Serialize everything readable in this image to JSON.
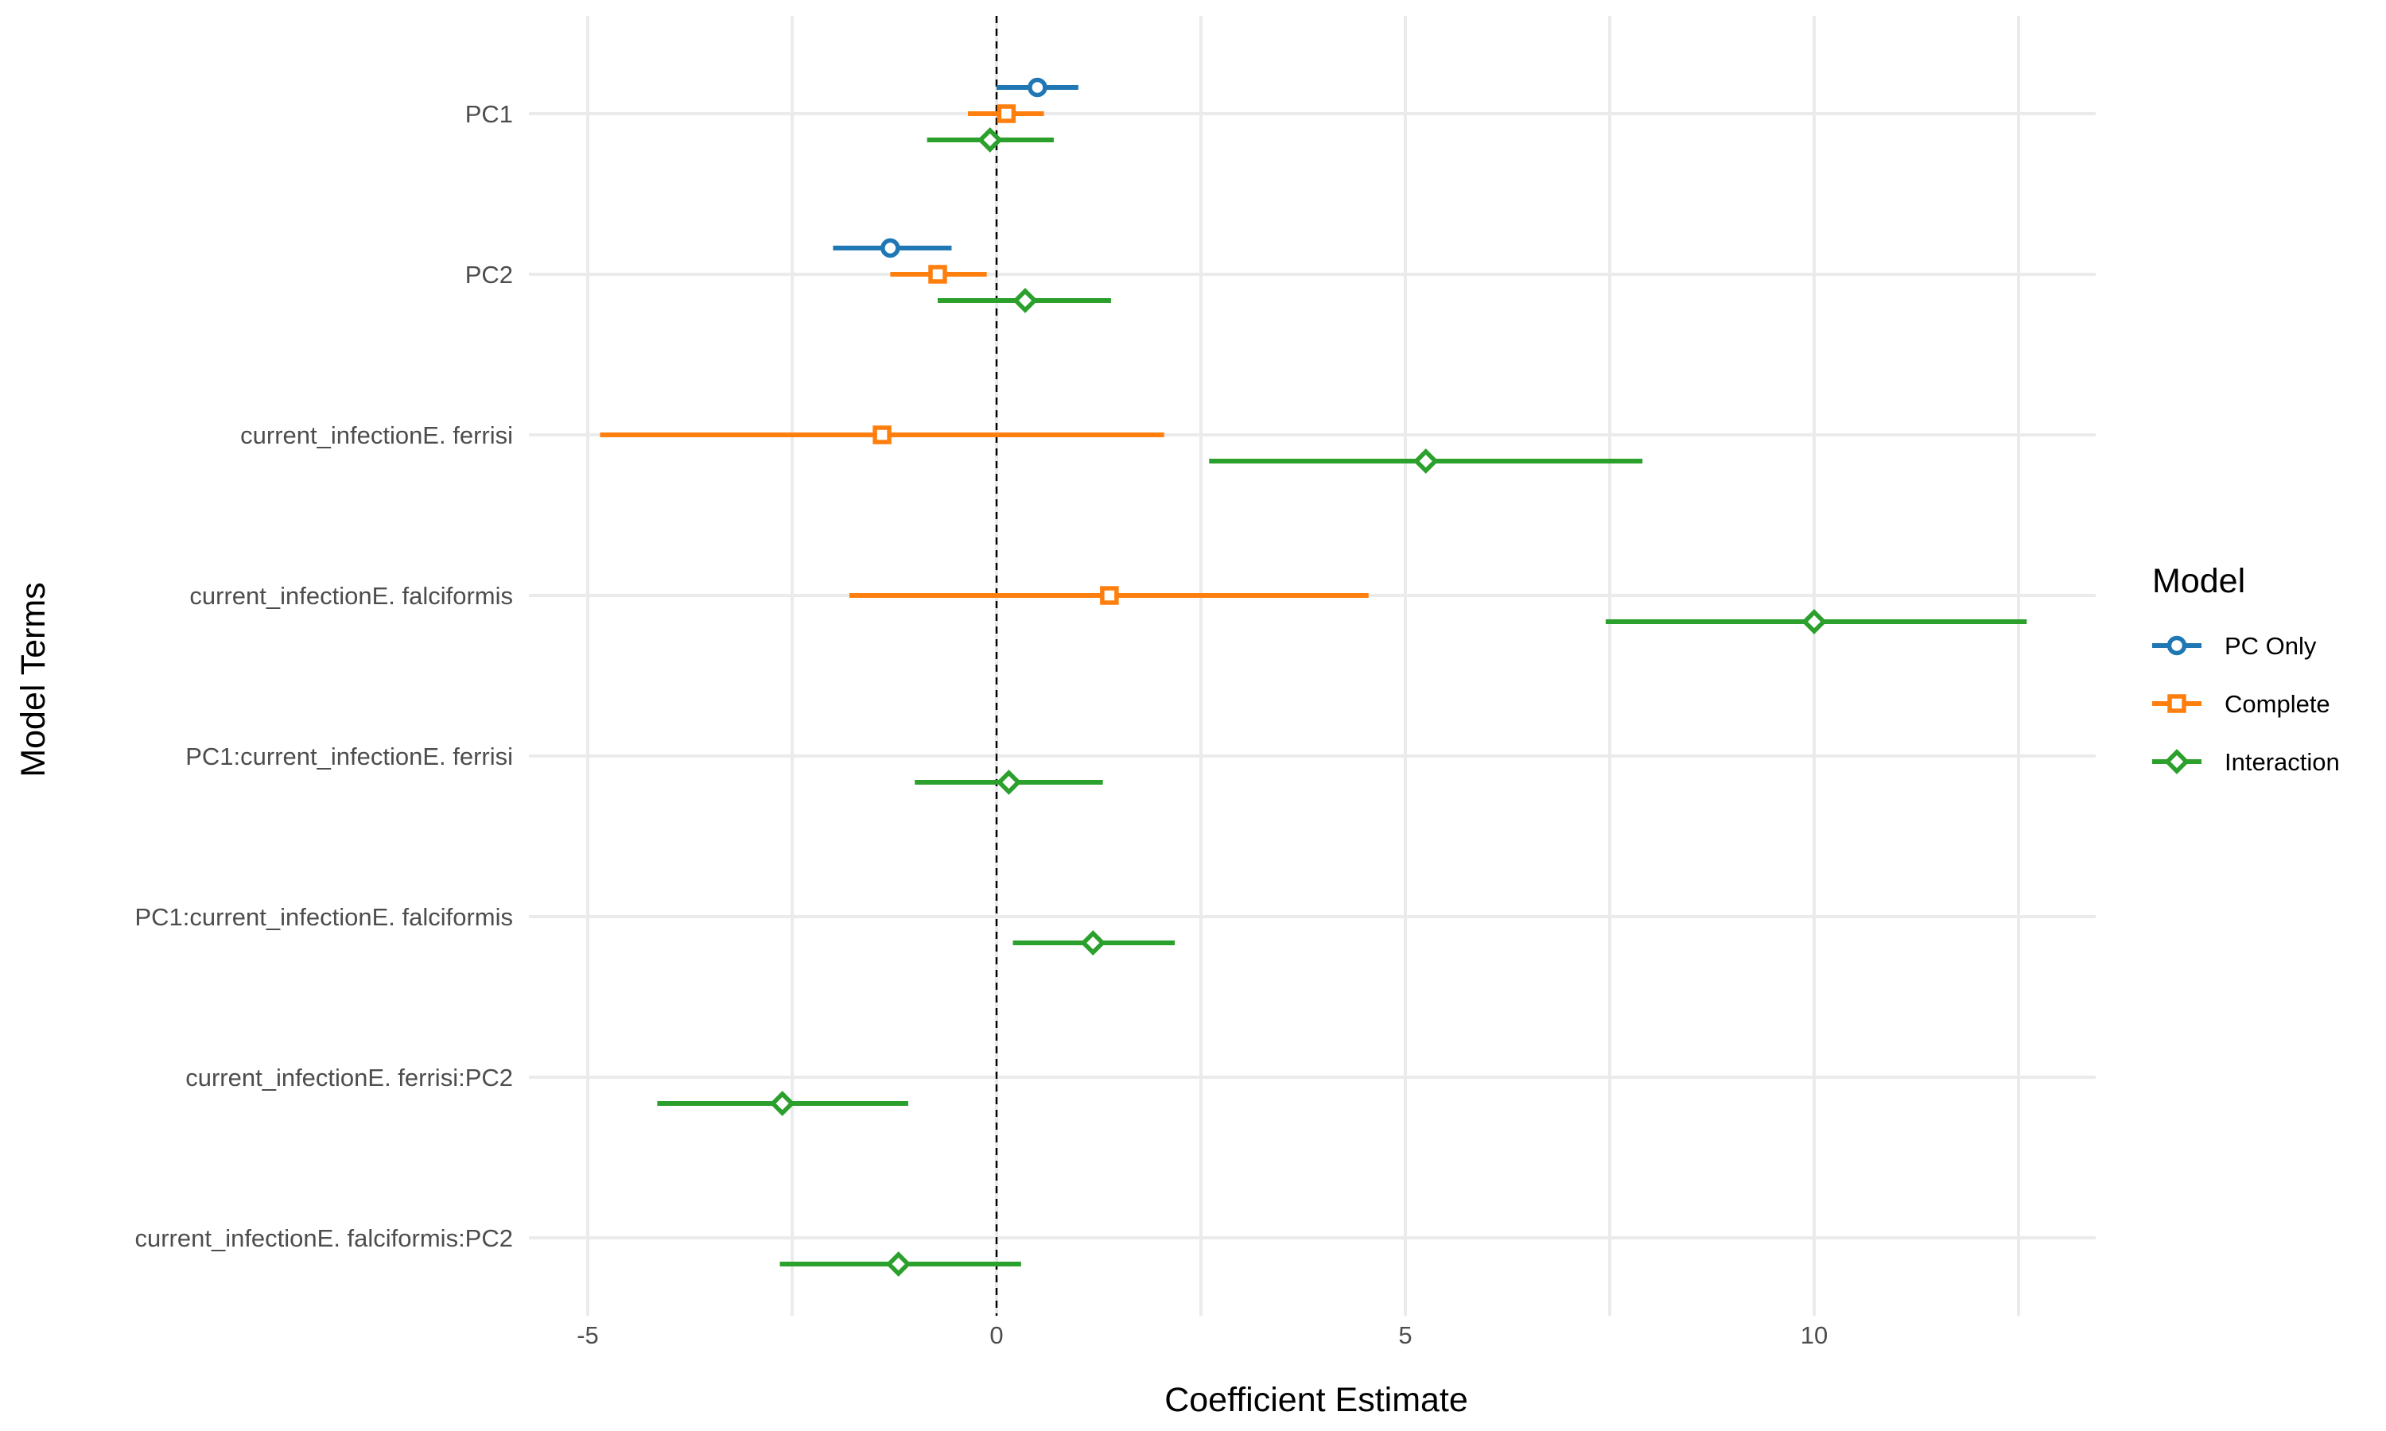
{
  "chart_data": {
    "type": "forest",
    "xlabel": "Coefficient Estimate",
    "ylabel": "Model Terms",
    "xlim": [
      -6.3,
      13.6
    ],
    "x_ticks": [
      -5,
      0,
      5,
      10
    ],
    "x_tick_labels": [
      "-5",
      "0",
      "5",
      "10"
    ],
    "reference_line_x": 0,
    "grid": true,
    "terms": [
      "PC1",
      "PC2",
      "current_infectionE. ferrisi",
      "current_infectionE. falciformis",
      "PC1:current_infectionE. ferrisi",
      "PC1:current_infectionE. falciformis",
      "current_infectionE. ferrisi:PC2",
      "current_infectionE. falciformis:PC2"
    ],
    "legend": {
      "title": "Model",
      "position": "right"
    },
    "series": [
      {
        "name": "PC Only",
        "color": "#1f77b4",
        "marker": "circle",
        "points": [
          {
            "term": "PC1",
            "estimate": 0.5,
            "low": 0.0,
            "high": 1.0
          },
          {
            "term": "PC2",
            "estimate": -1.3,
            "low": -2.0,
            "high": -0.55
          }
        ]
      },
      {
        "name": "Complete",
        "color": "#ff7f0e",
        "marker": "square",
        "points": [
          {
            "term": "PC1",
            "estimate": 0.12,
            "low": -0.35,
            "high": 0.58
          },
          {
            "term": "PC2",
            "estimate": -0.72,
            "low": -1.3,
            "high": -0.12
          },
          {
            "term": "current_infectionE. ferrisi",
            "estimate": -1.4,
            "low": -4.85,
            "high": 2.05
          },
          {
            "term": "current_infectionE. falciformis",
            "estimate": 1.38,
            "low": -1.8,
            "high": 4.55
          }
        ]
      },
      {
        "name": "Interaction",
        "color": "#2ca02c",
        "marker": "diamond",
        "points": [
          {
            "term": "PC1",
            "estimate": -0.08,
            "low": -0.85,
            "high": 0.7
          },
          {
            "term": "PC2",
            "estimate": 0.35,
            "low": -0.72,
            "high": 1.4
          },
          {
            "term": "current_infectionE. ferrisi",
            "estimate": 5.25,
            "low": 2.6,
            "high": 7.9
          },
          {
            "term": "current_infectionE. falciformis",
            "estimate": 10.0,
            "low": 7.45,
            "high": 12.6
          },
          {
            "term": "PC1:current_infectionE. ferrisi",
            "estimate": 0.15,
            "low": -1.0,
            "high": 1.3
          },
          {
            "term": "PC1:current_infectionE. falciformis",
            "estimate": 1.18,
            "low": 0.2,
            "high": 2.18
          },
          {
            "term": "current_infectionE. ferrisi:PC2",
            "estimate": -2.62,
            "low": -4.15,
            "high": -1.08
          },
          {
            "term": "current_infectionE. falciformis:PC2",
            "estimate": -1.2,
            "low": -2.65,
            "high": 0.3
          }
        ]
      }
    ]
  }
}
